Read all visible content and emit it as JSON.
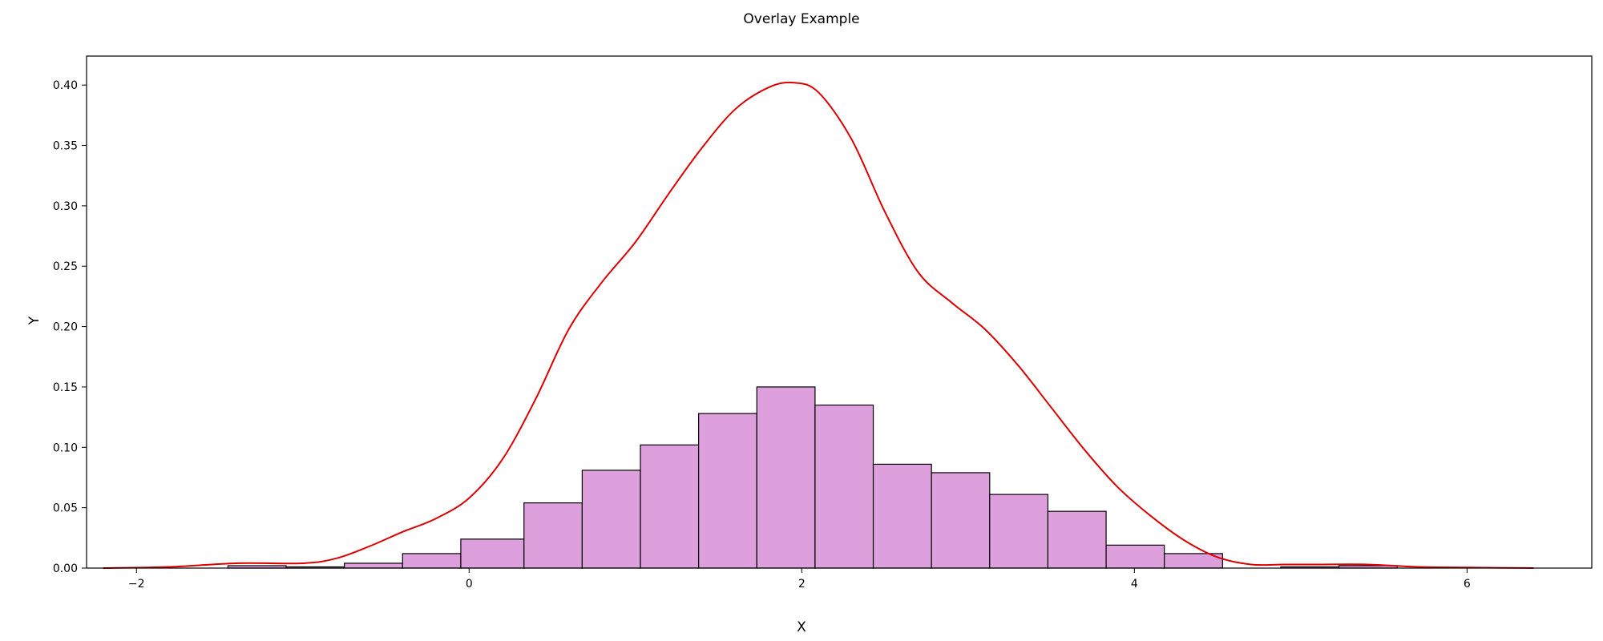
{
  "chart_data": {
    "type": "bar",
    "title": "Overlay Example",
    "xlabel": "X",
    "ylabel": "Y",
    "xlim": [
      -2.3,
      6.75
    ],
    "ylim": [
      0,
      0.424
    ],
    "xticks": [
      -2,
      0,
      2,
      4,
      6
    ],
    "xtick_labels": [
      "−2",
      "0",
      "2",
      "4",
      "6"
    ],
    "yticks": [
      0.0,
      0.05,
      0.1,
      0.15,
      0.2,
      0.25,
      0.3,
      0.35,
      0.4
    ],
    "ytick_labels": [
      "0.00",
      "0.05",
      "0.10",
      "0.15",
      "0.20",
      "0.25",
      "0.30",
      "0.35",
      "0.40"
    ],
    "grid": false,
    "histogram": {
      "bin_edges": [
        -1.45,
        -1.1,
        -0.75,
        -0.4,
        -0.05,
        0.33,
        0.68,
        1.03,
        1.38,
        1.73,
        2.08,
        2.43,
        2.78,
        3.13,
        3.48,
        3.83,
        4.18,
        4.53,
        4.88,
        5.23,
        5.58
      ],
      "density": [
        0.002,
        0.001,
        0.004,
        0.012,
        0.024,
        0.054,
        0.081,
        0.102,
        0.128,
        0.15,
        0.135,
        0.086,
        0.079,
        0.061,
        0.047,
        0.019,
        0.012,
        0.0,
        0.001,
        0.002
      ],
      "fill_color": "#dda0dd",
      "edge_color": "#000000"
    },
    "kde": {
      "color": "#dd0000",
      "x": [
        -2.2,
        -1.8,
        -1.4,
        -1.0,
        -0.8,
        -0.6,
        -0.4,
        -0.2,
        0.0,
        0.2,
        0.4,
        0.6,
        0.8,
        1.0,
        1.2,
        1.4,
        1.6,
        1.8,
        1.95,
        2.1,
        2.3,
        2.5,
        2.7,
        2.9,
        3.1,
        3.3,
        3.5,
        3.7,
        3.9,
        4.1,
        4.3,
        4.5,
        4.7,
        4.9,
        5.1,
        5.4,
        5.7,
        6.0,
        6.4
      ],
      "y": [
        0.0,
        0.001,
        0.004,
        0.004,
        0.008,
        0.018,
        0.03,
        0.041,
        0.058,
        0.09,
        0.14,
        0.198,
        0.237,
        0.27,
        0.31,
        0.348,
        0.38,
        0.398,
        0.402,
        0.394,
        0.355,
        0.295,
        0.245,
        0.22,
        0.198,
        0.168,
        0.133,
        0.098,
        0.067,
        0.043,
        0.023,
        0.009,
        0.003,
        0.003,
        0.003,
        0.003,
        0.001,
        0.0005,
        0.0
      ]
    }
  }
}
